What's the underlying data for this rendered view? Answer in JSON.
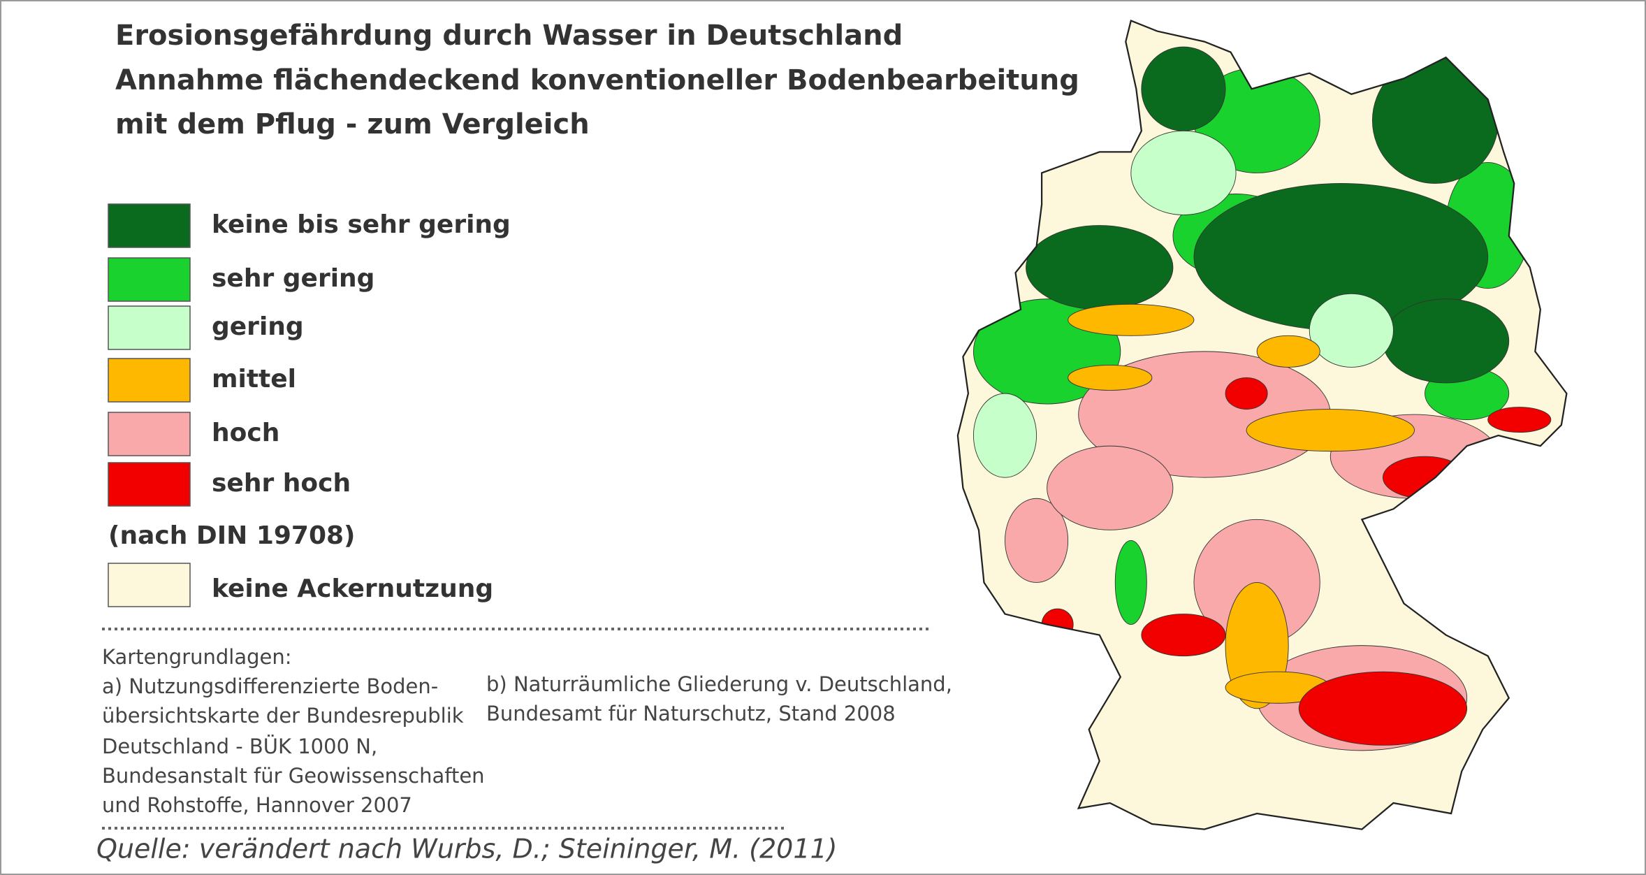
{
  "title": {
    "lines": [
      "Erosionsgefährdung durch Wasser in Deutschland",
      "Annahme flächendeckend konventioneller Bodenbearbeitung",
      "mit dem Pflug - zum Vergleich"
    ]
  },
  "legend": {
    "items": [
      {
        "label": "keine bis sehr gering",
        "color": "#0a6b1e"
      },
      {
        "label": "sehr gering",
        "color": "#19d22d"
      },
      {
        "label": "gering",
        "color": "#c6ffc9"
      },
      {
        "label": "mittel",
        "color": "#ffb800"
      },
      {
        "label": "hoch",
        "color": "#f9a9aa"
      },
      {
        "label": "sehr hoch",
        "color": "#f20000"
      }
    ],
    "note": "(nach DIN 19708)",
    "extra": {
      "label": "keine Ackernutzung",
      "color": "#fdf8db"
    }
  },
  "sources": {
    "heading": "Kartengrundlagen:",
    "a": [
      "a) Nutzungsdifferenzierte Boden-",
      "übersichtskarte der Bundesrepublik",
      "Deutschland - BÜK 1000 N,",
      "Bundesanstalt für Geowissenschaften",
      "und Rohstoffe, Hannover 2007"
    ],
    "b": [
      "b) Naturräumliche Gliederung v. Deutschland,",
      "Bundesamt für Naturschutz, Stand 2008"
    ]
  },
  "quelle": "Quelle: verändert nach Wurbs, D.; Steininger, M. (2011)"
}
